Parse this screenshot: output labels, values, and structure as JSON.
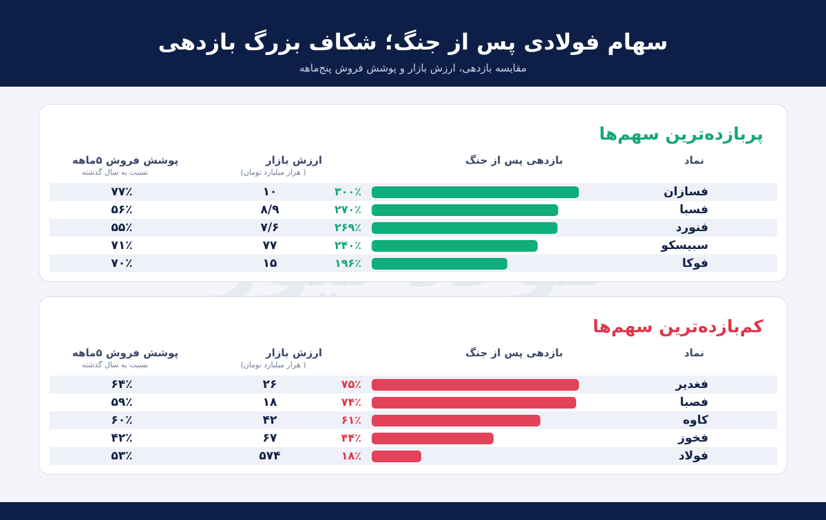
{
  "header": {
    "title": "سهام فولادی پس از جنگ؛ شکاف بزرگ بازدهی",
    "subtitle": "مقایسه بازدهی، ارزش بازار و پوشش فروش پنج‌ماهه"
  },
  "columns": {
    "symbol": "نماد",
    "yield": "بازدهی پس از جنگ",
    "mcap": "ارزش بازار",
    "mcap_unit": "( هزار میلیارد تومان)",
    "cover": "پوشش فروش ۵ماهه",
    "cover_note": "نسبت به سال گذشته"
  },
  "watermark": {
    "logo_text": "فولاد نیوز",
    "url": "Fouladnews.ir"
  },
  "colors": {
    "navy": "#0e1f47",
    "green": "#0fae7a",
    "red": "#e2425a"
  },
  "chart_data": [
    {
      "type": "bar",
      "title": "پربازده‌ترین سهم‌ها",
      "categories": [
        "فسازان",
        "فسبا",
        "فنورد",
        "سبیسکو",
        "فوکا"
      ],
      "values": [
        300,
        270,
        269,
        240,
        196
      ],
      "value_labels": [
        "۳۰۰٪",
        "۲۷۰٪",
        "۲۶۹٪",
        "۲۴۰٪",
        "۱۹۶٪"
      ],
      "market_cap": [
        "۱۰",
        "۸/۹",
        "۷/۶",
        "۷۷",
        "۱۵"
      ],
      "sales_cover": [
        "۷۷٪",
        "۵۶٪",
        "۵۵٪",
        "۷۱٪",
        "۷۰٪"
      ],
      "xlim": [
        0,
        300
      ]
    },
    {
      "type": "bar",
      "title": "کم‌بازده‌ترین سهم‌ها",
      "categories": [
        "فغدیر",
        "فصبا",
        "کاوه",
        "فخوز",
        "فولاد"
      ],
      "values": [
        75,
        74,
        61,
        44,
        18
      ],
      "value_labels": [
        "۷۵٪",
        "۷۴٪",
        "۶۱٪",
        "۴۴٪",
        "۱۸٪"
      ],
      "market_cap": [
        "۲۶",
        "۱۸",
        "۴۲",
        "۶۷",
        "۵۷۴"
      ],
      "sales_cover": [
        "۶۴٪",
        "۵۹٪",
        "۶۰٪",
        "۴۲٪",
        "۵۳٪"
      ],
      "xlim": [
        0,
        75
      ]
    }
  ]
}
